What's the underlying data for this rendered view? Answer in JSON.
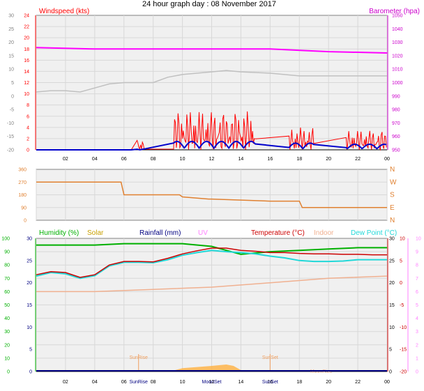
{
  "title": "24 hour graph day : 08 November 2017",
  "colors": {
    "wind": "#ff0000",
    "windAvg": "#0000cc",
    "baro": "#ff00ff",
    "baroText": "#cc00cc",
    "gust_grey": "#c0c0c0",
    "dir": "#e08030",
    "humidity": "#00b000",
    "solar": "#c8a000",
    "rain": "#000080",
    "uv": "#ff80ff",
    "temp": "#cc0000",
    "indoor": "#f0b090",
    "dew": "#20d8d8",
    "sun": "#f0a060",
    "plotbg": "#f0f0f0"
  },
  "x_labels": [
    "02",
    "04",
    "06",
    "08",
    "10",
    "12",
    "14",
    "16",
    "18",
    "20",
    "22",
    "00"
  ],
  "top": {
    "wind_label": "Windspeed (kts)",
    "baro_label": "Barometer (hpa)",
    "left_outer_ticks": [
      "30",
      "25",
      "20",
      "15",
      "10",
      "5",
      "0",
      "-5",
      "-10",
      "-15",
      "-20"
    ],
    "left_inner_ticks": [
      "24",
      "22",
      "20",
      "18",
      "16",
      "14",
      "12",
      "10",
      "8",
      "6",
      "4",
      "2",
      "0"
    ],
    "right_ticks": [
      "1050",
      "1040",
      "1030",
      "1020",
      "1010",
      "1000",
      "990",
      "980",
      "970",
      "960",
      "950"
    ],
    "series": {
      "barometer_hpa": {
        "x": [
          0,
          4,
          10,
          16,
          20,
          24
        ],
        "y": [
          1026,
          1025,
          1025,
          1025,
          1023,
          1022
        ]
      },
      "grey_trace": {
        "x": [
          0,
          1,
          2,
          3,
          4,
          5,
          6,
          8,
          9,
          10,
          12,
          13,
          14,
          16,
          18,
          20,
          22,
          24
        ],
        "y": [
          1.5,
          2,
          2,
          1.5,
          3,
          4.5,
          5,
          5,
          7,
          8,
          9,
          9.5,
          9,
          8.5,
          7.5,
          7.5,
          7.5,
          7.5
        ]
      }
    }
  },
  "mid": {
    "left_ticks": [
      "360",
      "270",
      "180",
      "90",
      "0"
    ],
    "right_labels": [
      "N",
      "W",
      "S",
      "E",
      "N"
    ],
    "series": {
      "direction_deg": {
        "x": [
          0,
          5.8,
          6,
          9.8,
          10,
          11.8,
          12,
          16,
          18,
          18.2,
          24
        ],
        "y": [
          270,
          270,
          180,
          180,
          165,
          150,
          150,
          135,
          135,
          90,
          90
        ]
      }
    }
  },
  "bottom": {
    "legend": {
      "humidity": "Humidity (%)",
      "solar": "Solar",
      "rainfall": "Rainfall (mm)",
      "uv": "UV",
      "temperature": "Temperature (°C)",
      "indoor": "Indoor",
      "dew": "Dew Point (°C)"
    },
    "humidity_ticks": [
      "100",
      "90",
      "80",
      "70",
      "60",
      "50",
      "40",
      "30",
      "20",
      "10",
      "0"
    ],
    "left_inner_ticks": [
      "30",
      "25",
      "20",
      "15",
      "10",
      "5",
      "0"
    ],
    "right_inner_ticks": [
      "30",
      "25",
      "20",
      "15",
      "10",
      "5",
      "0"
    ],
    "uv_ticks": [
      "10",
      "9",
      "8",
      "7",
      "6",
      "5",
      "4",
      "3",
      "2",
      "1",
      "0"
    ],
    "temp_ticks": [
      "10",
      "5",
      "0",
      "-5",
      "-10",
      "-15",
      "-20"
    ],
    "sunrise": "SunRise",
    "sunset": "SunSet",
    "moonset": "MoonSet",
    "moonrise": "MoonRise",
    "sunrise_time": 7,
    "sunset_time": 16,
    "moonset_time": 12,
    "moonrise_time": 19.5,
    "series": {
      "humidity_pct": {
        "x": [
          0,
          2,
          4,
          6,
          8,
          10,
          12,
          13,
          14,
          16,
          18,
          20,
          22,
          24
        ],
        "y": [
          95,
          95,
          95,
          96,
          96,
          96,
          94,
          91,
          88,
          90,
          91,
          92,
          93,
          93
        ]
      },
      "temperature_c": {
        "x": [
          0,
          1,
          2,
          3,
          4,
          5,
          6,
          7,
          8,
          9,
          10,
          11,
          12,
          13,
          14,
          15,
          16,
          17,
          18,
          19,
          20,
          21,
          22,
          23,
          24
        ],
        "y": [
          1.8,
          2.5,
          2.3,
          1.2,
          1.8,
          4.0,
          4.8,
          4.8,
          4.7,
          5.5,
          6.5,
          7.2,
          7.8,
          7.8,
          7.3,
          7.1,
          6.8,
          6.8,
          6.6,
          6.5,
          6.5,
          6.4,
          6.4,
          6.3,
          6.3
        ]
      },
      "dewpoint_c": {
        "x": [
          0,
          1,
          2,
          3,
          4,
          5,
          6,
          7,
          8,
          9,
          10,
          11,
          12,
          13,
          14,
          15,
          16,
          17,
          18,
          19,
          20,
          21,
          22,
          23,
          24
        ],
        "y": [
          1.5,
          2.3,
          2.0,
          1.0,
          1.6,
          3.8,
          4.6,
          4.6,
          4.5,
          5.2,
          6.2,
          6.8,
          7.3,
          7.0,
          6.8,
          6.5,
          6.0,
          5.6,
          5.0,
          4.8,
          4.8,
          4.9,
          5.2,
          5.2,
          5.2
        ]
      },
      "indoor_c": {
        "x": [
          0,
          4,
          8,
          12,
          16,
          20,
          24
        ],
        "y": [
          18,
          18,
          18.5,
          19,
          20,
          21,
          21.5
        ]
      },
      "solar_band": {
        "x": [
          9.5,
          10,
          11,
          12,
          13,
          13.5,
          14
        ],
        "y": [
          0.5,
          1.2,
          1.6,
          2.0,
          2.5,
          2.0,
          0.5
        ]
      }
    }
  },
  "chart_data": [
    {
      "type": "line",
      "title": "24 hour graph day : 08 November 2017",
      "series": [
        {
          "name": "Barometer (hpa)",
          "x": [
            0,
            4,
            10,
            16,
            20,
            24
          ],
          "y": [
            1026,
            1025,
            1025,
            1025,
            1023,
            1022
          ]
        },
        {
          "name": "Windspeed (kts)",
          "x": [
            0,
            7,
            9.6,
            10,
            11,
            12,
            13,
            14,
            14.5,
            18,
            21.5,
            23,
            24
          ],
          "y": [
            0,
            0,
            6,
            5,
            4,
            3,
            6,
            8,
            3,
            4,
            2,
            4,
            2
          ]
        }
      ],
      "xlabel": "",
      "ylabel": "Windspeed (kts)",
      "ylim": [
        0,
        24
      ]
    },
    {
      "type": "line",
      "series": [
        {
          "name": "",
          "x": [
            0,
            6,
            10,
            12,
            18,
            24
          ],
          "y": [
            270,
            180,
            165,
            150,
            90,
            90
          ]
        }
      ],
      "ylim": [
        0,
        360
      ]
    },
    {
      "type": "line",
      "series": [
        {
          "name": "Humidity (%)",
          "x": [
            0,
            6,
            12,
            14,
            18,
            24
          ],
          "y": [
            95,
            96,
            94,
            88,
            91,
            93
          ]
        },
        {
          "name": "Temperature (°C)",
          "x": [
            0,
            3,
            6,
            9,
            12,
            15,
            18,
            21,
            24
          ],
          "y": [
            1.8,
            1.2,
            4.8,
            5.5,
            7.8,
            7.1,
            6.6,
            6.4,
            6.3
          ]
        },
        {
          "name": "Dew Point (°C)",
          "x": [
            0,
            3,
            6,
            9,
            12,
            15,
            18,
            21,
            24
          ],
          "y": [
            1.5,
            1.0,
            4.6,
            5.2,
            7.3,
            6.5,
            5.0,
            4.9,
            5.2
          ]
        }
      ],
      "ylim": [
        -20,
        10
      ]
    }
  ]
}
